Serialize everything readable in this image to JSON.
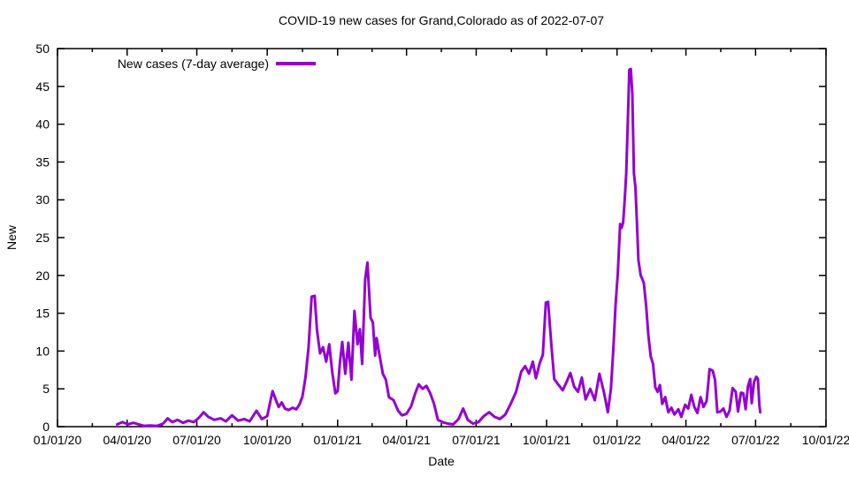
{
  "page": {
    "background": "#ffffff"
  },
  "chart_data": {
    "type": "line",
    "title": "COVID-19 new cases for Grand,Colorado as of 2022-07-07",
    "xlabel": "Date",
    "ylabel": "New",
    "legend": {
      "label": "New cases (7-day average)",
      "position": "top-left-inside"
    },
    "line_color": "#9400D3",
    "axis_color": "#000000",
    "background": "#ffffff",
    "grid": false,
    "ylim": [
      0,
      50
    ],
    "yticks": [
      0,
      5,
      10,
      15,
      20,
      25,
      30,
      35,
      40,
      45,
      50
    ],
    "xlim": [
      "2020-01-01",
      "2022-10-01"
    ],
    "xticks": [
      {
        "date": "2020-01-01",
        "label": "01/01/20"
      },
      {
        "date": "2020-04-01",
        "label": "04/01/20"
      },
      {
        "date": "2020-07-01",
        "label": "07/01/20"
      },
      {
        "date": "2020-10-01",
        "label": "10/01/20"
      },
      {
        "date": "2021-01-01",
        "label": "01/01/21"
      },
      {
        "date": "2021-04-01",
        "label": "04/01/21"
      },
      {
        "date": "2021-07-01",
        "label": "07/01/21"
      },
      {
        "date": "2021-10-01",
        "label": "10/01/21"
      },
      {
        "date": "2022-01-01",
        "label": "01/01/22"
      },
      {
        "date": "2022-04-01",
        "label": "04/01/22"
      },
      {
        "date": "2022-07-01",
        "label": "07/01/22"
      },
      {
        "date": "2022-10-01",
        "label": "10/01/22"
      }
    ],
    "series": [
      {
        "name": "New cases (7-day average)",
        "color": "#9400D3",
        "points": [
          [
            "2020-03-19",
            0.3
          ],
          [
            "2020-03-26",
            0.6
          ],
          [
            "2020-04-02",
            0.3
          ],
          [
            "2020-04-09",
            0.5
          ],
          [
            "2020-04-16",
            0.3
          ],
          [
            "2020-04-23",
            0.1
          ],
          [
            "2020-05-01",
            0.15
          ],
          [
            "2020-05-10",
            0.1
          ],
          [
            "2020-05-18",
            0.4
          ],
          [
            "2020-05-24",
            1.1
          ],
          [
            "2020-05-30",
            0.6
          ],
          [
            "2020-06-06",
            0.9
          ],
          [
            "2020-06-13",
            0.5
          ],
          [
            "2020-06-20",
            0.8
          ],
          [
            "2020-06-27",
            0.6
          ],
          [
            "2020-07-04",
            1.2
          ],
          [
            "2020-07-10",
            1.9
          ],
          [
            "2020-07-16",
            1.3
          ],
          [
            "2020-07-24",
            0.9
          ],
          [
            "2020-08-01",
            1.1
          ],
          [
            "2020-08-08",
            0.7
          ],
          [
            "2020-08-16",
            1.5
          ],
          [
            "2020-08-24",
            0.8
          ],
          [
            "2020-09-01",
            1.0
          ],
          [
            "2020-09-08",
            0.7
          ],
          [
            "2020-09-17",
            2.1
          ],
          [
            "2020-09-24",
            1.0
          ],
          [
            "2020-10-01",
            1.4
          ],
          [
            "2020-10-05",
            3.3
          ],
          [
            "2020-10-08",
            4.7
          ],
          [
            "2020-10-12",
            3.6
          ],
          [
            "2020-10-16",
            2.6
          ],
          [
            "2020-10-20",
            3.2
          ],
          [
            "2020-10-24",
            2.4
          ],
          [
            "2020-10-29",
            2.2
          ],
          [
            "2020-11-03",
            2.5
          ],
          [
            "2020-11-08",
            2.3
          ],
          [
            "2020-11-12",
            2.9
          ],
          [
            "2020-11-16",
            4.0
          ],
          [
            "2020-11-20",
            6.5
          ],
          [
            "2020-11-24",
            10.5
          ],
          [
            "2020-11-28",
            17.2
          ],
          [
            "2020-12-02",
            17.3
          ],
          [
            "2020-12-05",
            12.8
          ],
          [
            "2020-12-09",
            9.7
          ],
          [
            "2020-12-13",
            10.5
          ],
          [
            "2020-12-17",
            8.6
          ],
          [
            "2020-12-21",
            10.9
          ],
          [
            "2020-12-25",
            7.2
          ],
          [
            "2020-12-29",
            4.4
          ],
          [
            "2021-01-01",
            4.7
          ],
          [
            "2021-01-04",
            8.5
          ],
          [
            "2021-01-07",
            11.2
          ],
          [
            "2021-01-11",
            7.0
          ],
          [
            "2021-01-15",
            11.1
          ],
          [
            "2021-01-19",
            6.2
          ],
          [
            "2021-01-23",
            15.3
          ],
          [
            "2021-01-27",
            10.9
          ],
          [
            "2021-01-30",
            12.9
          ],
          [
            "2021-02-02",
            8.3
          ],
          [
            "2021-02-06",
            19.5
          ],
          [
            "2021-02-09",
            21.7
          ],
          [
            "2021-02-13",
            14.4
          ],
          [
            "2021-02-16",
            13.8
          ],
          [
            "2021-02-19",
            9.4
          ],
          [
            "2021-02-21",
            11.7
          ],
          [
            "2021-02-25",
            9.3
          ],
          [
            "2021-03-01",
            7.0
          ],
          [
            "2021-03-05",
            6.2
          ],
          [
            "2021-03-09",
            3.9
          ],
          [
            "2021-03-15",
            3.5
          ],
          [
            "2021-03-21",
            2.1
          ],
          [
            "2021-03-26",
            1.5
          ],
          [
            "2021-04-01",
            1.7
          ],
          [
            "2021-04-07",
            2.7
          ],
          [
            "2021-04-12",
            4.3
          ],
          [
            "2021-04-17",
            5.6
          ],
          [
            "2021-04-22",
            5.0
          ],
          [
            "2021-04-27",
            5.4
          ],
          [
            "2021-05-02",
            4.4
          ],
          [
            "2021-05-07",
            3.0
          ],
          [
            "2021-05-12",
            0.9
          ],
          [
            "2021-05-18",
            0.6
          ],
          [
            "2021-05-25",
            0.4
          ],
          [
            "2021-06-01",
            0.3
          ],
          [
            "2021-06-08",
            1.0
          ],
          [
            "2021-06-14",
            2.4
          ],
          [
            "2021-06-20",
            0.9
          ],
          [
            "2021-06-27",
            0.4
          ],
          [
            "2021-07-04",
            0.6
          ],
          [
            "2021-07-11",
            1.4
          ],
          [
            "2021-07-18",
            1.9
          ],
          [
            "2021-07-25",
            1.3
          ],
          [
            "2021-08-01",
            1.0
          ],
          [
            "2021-08-08",
            1.6
          ],
          [
            "2021-08-15",
            3.0
          ],
          [
            "2021-08-22",
            4.6
          ],
          [
            "2021-08-29",
            7.3
          ],
          [
            "2021-09-03",
            8.0
          ],
          [
            "2021-09-08",
            7.0
          ],
          [
            "2021-09-13",
            8.6
          ],
          [
            "2021-09-17",
            6.4
          ],
          [
            "2021-09-22",
            8.4
          ],
          [
            "2021-09-26",
            9.5
          ],
          [
            "2021-09-30",
            16.4
          ],
          [
            "2021-10-03",
            16.5
          ],
          [
            "2021-10-07",
            11.0
          ],
          [
            "2021-10-11",
            6.3
          ],
          [
            "2021-10-16",
            5.6
          ],
          [
            "2021-10-22",
            4.8
          ],
          [
            "2021-10-27",
            5.9
          ],
          [
            "2021-11-01",
            7.1
          ],
          [
            "2021-11-06",
            5.3
          ],
          [
            "2021-11-11",
            4.6
          ],
          [
            "2021-11-16",
            6.5
          ],
          [
            "2021-11-21",
            3.6
          ],
          [
            "2021-11-27",
            5.0
          ],
          [
            "2021-12-03",
            3.5
          ],
          [
            "2021-12-09",
            7.0
          ],
          [
            "2021-12-15",
            4.5
          ],
          [
            "2021-12-20",
            1.9
          ],
          [
            "2021-12-24",
            5.0
          ],
          [
            "2021-12-27",
            10.0
          ],
          [
            "2021-12-30",
            16.0
          ],
          [
            "2022-01-02",
            20.3
          ],
          [
            "2022-01-05",
            26.8
          ],
          [
            "2022-01-07",
            26.3
          ],
          [
            "2022-01-09",
            27.0
          ],
          [
            "2022-01-11",
            30.0
          ],
          [
            "2022-01-13",
            33.5
          ],
          [
            "2022-01-15",
            40.0
          ],
          [
            "2022-01-17",
            47.2
          ],
          [
            "2022-01-19",
            47.3
          ],
          [
            "2022-01-21",
            44.0
          ],
          [
            "2022-01-23",
            33.5
          ],
          [
            "2022-01-25",
            31.7
          ],
          [
            "2022-01-27",
            27.0
          ],
          [
            "2022-01-29",
            22.0
          ],
          [
            "2022-02-01",
            20.0
          ],
          [
            "2022-02-03",
            19.5
          ],
          [
            "2022-02-05",
            19.0
          ],
          [
            "2022-02-08",
            16.0
          ],
          [
            "2022-02-11",
            12.0
          ],
          [
            "2022-02-14",
            9.3
          ],
          [
            "2022-02-17",
            8.3
          ],
          [
            "2022-02-20",
            5.2
          ],
          [
            "2022-02-23",
            4.6
          ],
          [
            "2022-02-26",
            5.5
          ],
          [
            "2022-03-01",
            3.0
          ],
          [
            "2022-03-05",
            3.9
          ],
          [
            "2022-03-09",
            1.9
          ],
          [
            "2022-03-13",
            2.5
          ],
          [
            "2022-03-17",
            1.6
          ],
          [
            "2022-03-22",
            2.3
          ],
          [
            "2022-03-26",
            1.3
          ],
          [
            "2022-03-31",
            2.9
          ],
          [
            "2022-04-04",
            2.4
          ],
          [
            "2022-04-08",
            4.2
          ],
          [
            "2022-04-12",
            2.6
          ],
          [
            "2022-04-16",
            1.8
          ],
          [
            "2022-04-20",
            3.9
          ],
          [
            "2022-04-24",
            2.6
          ],
          [
            "2022-04-28",
            3.4
          ],
          [
            "2022-05-02",
            7.6
          ],
          [
            "2022-05-06",
            7.4
          ],
          [
            "2022-05-09",
            6.2
          ],
          [
            "2022-05-12",
            1.9
          ],
          [
            "2022-05-16",
            2.0
          ],
          [
            "2022-05-20",
            2.4
          ],
          [
            "2022-05-24",
            1.3
          ],
          [
            "2022-05-28",
            2.1
          ],
          [
            "2022-06-01",
            5.1
          ],
          [
            "2022-06-05",
            4.6
          ],
          [
            "2022-06-08",
            2.0
          ],
          [
            "2022-06-12",
            4.5
          ],
          [
            "2022-06-15",
            4.4
          ],
          [
            "2022-06-18",
            2.3
          ],
          [
            "2022-06-21",
            5.3
          ],
          [
            "2022-06-24",
            6.3
          ],
          [
            "2022-06-26",
            3.1
          ],
          [
            "2022-06-29",
            5.9
          ],
          [
            "2022-07-02",
            6.6
          ],
          [
            "2022-07-04",
            6.3
          ],
          [
            "2022-07-06",
            2.8
          ],
          [
            "2022-07-07",
            1.9
          ]
        ]
      }
    ]
  }
}
